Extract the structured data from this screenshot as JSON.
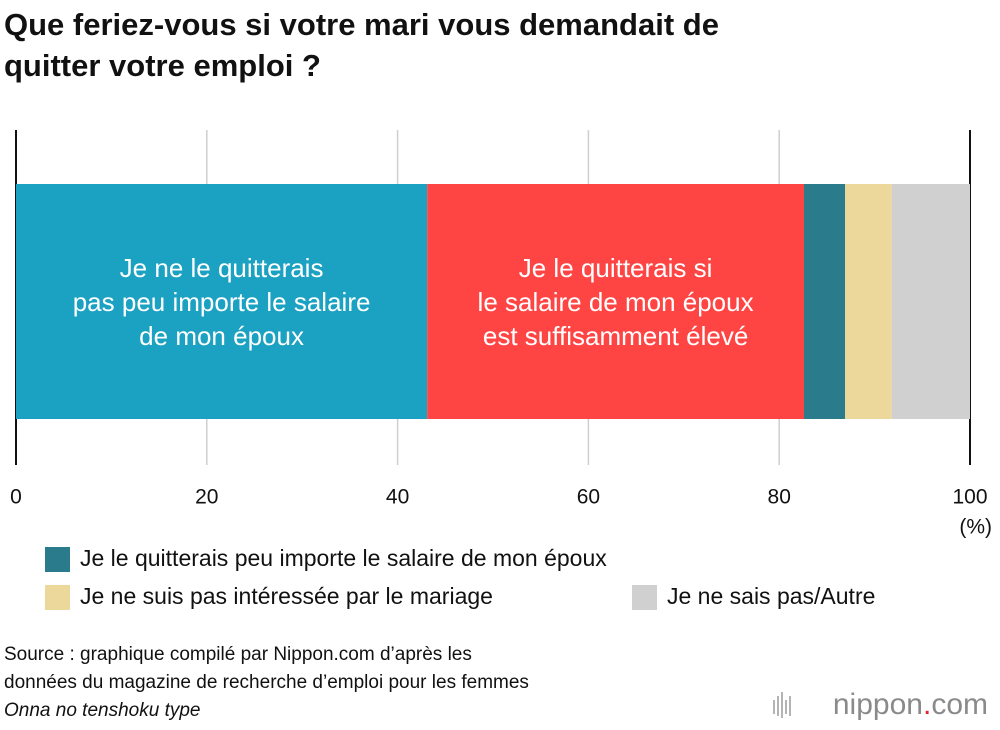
{
  "chart_data": {
    "type": "stacked-bar",
    "title": "Que feriez-vous si votre mari vous demandait de\nquitter votre emploi ?",
    "series": [
      {
        "name": "Je ne le quitterais\npas peu importe le salaire\nde mon époux",
        "color": "#1ba1c1",
        "values": [
          43.1
        ],
        "label_inside": true
      },
      {
        "name": "Je le quitterais si\nle salaire de mon époux\nest suffisamment élevé",
        "color": "#ff4444",
        "values": [
          39.5
        ],
        "label_inside": true
      },
      {
        "name": "Je le quitterais peu importe le salaire de mon époux",
        "color": "#2a7b8c",
        "values": [
          4.3
        ],
        "label_inside": false
      },
      {
        "name": "Je ne suis pas intéressée par le mariage",
        "color": "#ecd89b",
        "values": [
          4.9
        ],
        "label_inside": false
      },
      {
        "name": "Je ne sais pas/Autre",
        "color": "#d0d0d0",
        "values": [
          8.2
        ],
        "label_inside": false
      }
    ],
    "xlim": [
      0,
      100
    ],
    "xticks": [
      0,
      20,
      40,
      60,
      80,
      100
    ],
    "x_unit": "(%)",
    "grid": true,
    "source": [
      "Source : graphique compilé par Nippon.com d’après les",
      "données du magazine de recherche d’emploi pour les femmes"
    ],
    "source_title": "Onna no tenshoku type",
    "logo": [
      "nippon",
      ".",
      "com"
    ]
  }
}
